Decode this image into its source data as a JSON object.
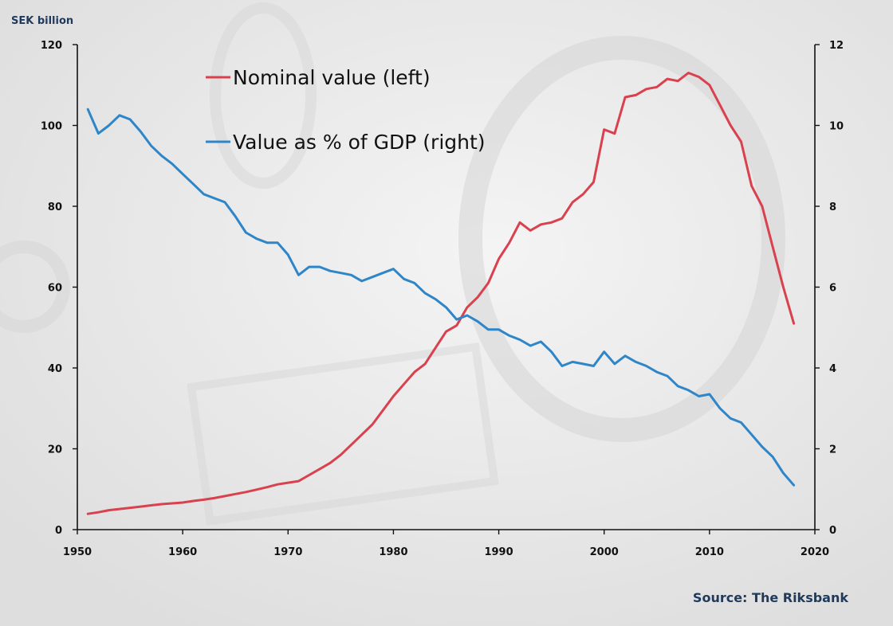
{
  "chart_data": {
    "type": "line",
    "unit_label": "SEK billion",
    "source": "Source: The Riksbank",
    "xlim": [
      1950,
      2020
    ],
    "x_ticks": [
      1950,
      1960,
      1970,
      1980,
      1990,
      2000,
      2010,
      2020
    ],
    "y_left": {
      "range": [
        0,
        120
      ],
      "ticks": [
        0,
        20,
        40,
        60,
        80,
        100,
        120
      ]
    },
    "y_right": {
      "range": [
        0,
        12
      ],
      "ticks": [
        0,
        2,
        4,
        6,
        8,
        10,
        12
      ]
    },
    "legend_position": "top-left",
    "series": [
      {
        "name": "Nominal value (left)",
        "axis": "left",
        "color": "#d9414e",
        "x": [
          1951,
          1952,
          1953,
          1954,
          1955,
          1956,
          1957,
          1958,
          1959,
          1960,
          1961,
          1962,
          1963,
          1964,
          1965,
          1966,
          1967,
          1968,
          1969,
          1970,
          1971,
          1972,
          1973,
          1974,
          1975,
          1976,
          1977,
          1978,
          1979,
          1980,
          1981,
          1982,
          1983,
          1984,
          1985,
          1986,
          1987,
          1988,
          1989,
          1990,
          1991,
          1992,
          1993,
          1994,
          1995,
          1996,
          1997,
          1998,
          1999,
          2000,
          2001,
          2002,
          2003,
          2004,
          2005,
          2006,
          2007,
          2008,
          2009,
          2010,
          2011,
          2012,
          2013,
          2014,
          2015,
          2016,
          2017,
          2018
        ],
        "values": [
          3.9,
          4.3,
          4.8,
          5.1,
          5.4,
          5.7,
          6.0,
          6.3,
          6.5,
          6.7,
          7.1,
          7.4,
          7.8,
          8.3,
          8.8,
          9.3,
          9.9,
          10.5,
          11.2,
          11.6,
          12.0,
          13.5,
          15.0,
          16.5,
          18.5,
          21.0,
          23.5,
          26.0,
          29.5,
          33.0,
          36.0,
          39.0,
          41.0,
          45.0,
          49.0,
          50.5,
          55.0,
          57.5,
          61.0,
          67.0,
          71.0,
          76.0,
          74.0,
          75.5,
          76.0,
          77.0,
          81.0,
          83.0,
          86.0,
          99.0,
          98.0,
          107.0,
          107.5,
          109.0,
          109.5,
          111.5,
          111.0,
          113.0,
          112.0,
          110.0,
          105.0,
          100.0,
          96.0,
          85.0,
          80.0,
          70.0,
          60.0,
          51.0
        ]
      },
      {
        "name": "Value as % of GDP (right)",
        "axis": "right",
        "color": "#2e86c9",
        "x": [
          1951,
          1952,
          1953,
          1954,
          1955,
          1956,
          1957,
          1958,
          1959,
          1960,
          1961,
          1962,
          1963,
          1964,
          1965,
          1966,
          1967,
          1968,
          1969,
          1970,
          1971,
          1972,
          1973,
          1974,
          1975,
          1976,
          1977,
          1978,
          1979,
          1980,
          1981,
          1982,
          1983,
          1984,
          1985,
          1986,
          1987,
          1988,
          1989,
          1990,
          1991,
          1992,
          1993,
          1994,
          1995,
          1996,
          1997,
          1998,
          1999,
          2000,
          2001,
          2002,
          2003,
          2004,
          2005,
          2006,
          2007,
          2008,
          2009,
          2010,
          2011,
          2012,
          2013,
          2014,
          2015,
          2016,
          2017,
          2018
        ],
        "values": [
          10.4,
          9.8,
          10.0,
          10.25,
          10.15,
          9.85,
          9.5,
          9.25,
          9.05,
          8.8,
          8.55,
          8.3,
          8.2,
          8.1,
          7.75,
          7.35,
          7.2,
          7.1,
          7.1,
          6.8,
          6.3,
          6.5,
          6.5,
          6.4,
          6.35,
          6.3,
          6.15,
          6.25,
          6.35,
          6.45,
          6.2,
          6.1,
          5.85,
          5.7,
          5.5,
          5.2,
          5.3,
          5.15,
          4.95,
          4.95,
          4.8,
          4.7,
          4.55,
          4.65,
          4.4,
          4.05,
          4.15,
          4.1,
          4.05,
          4.4,
          4.1,
          4.3,
          4.15,
          4.05,
          3.9,
          3.8,
          3.55,
          3.45,
          3.3,
          3.35,
          3.0,
          2.75,
          2.65,
          2.35,
          2.05,
          1.8,
          1.4,
          1.1
        ]
      }
    ]
  }
}
